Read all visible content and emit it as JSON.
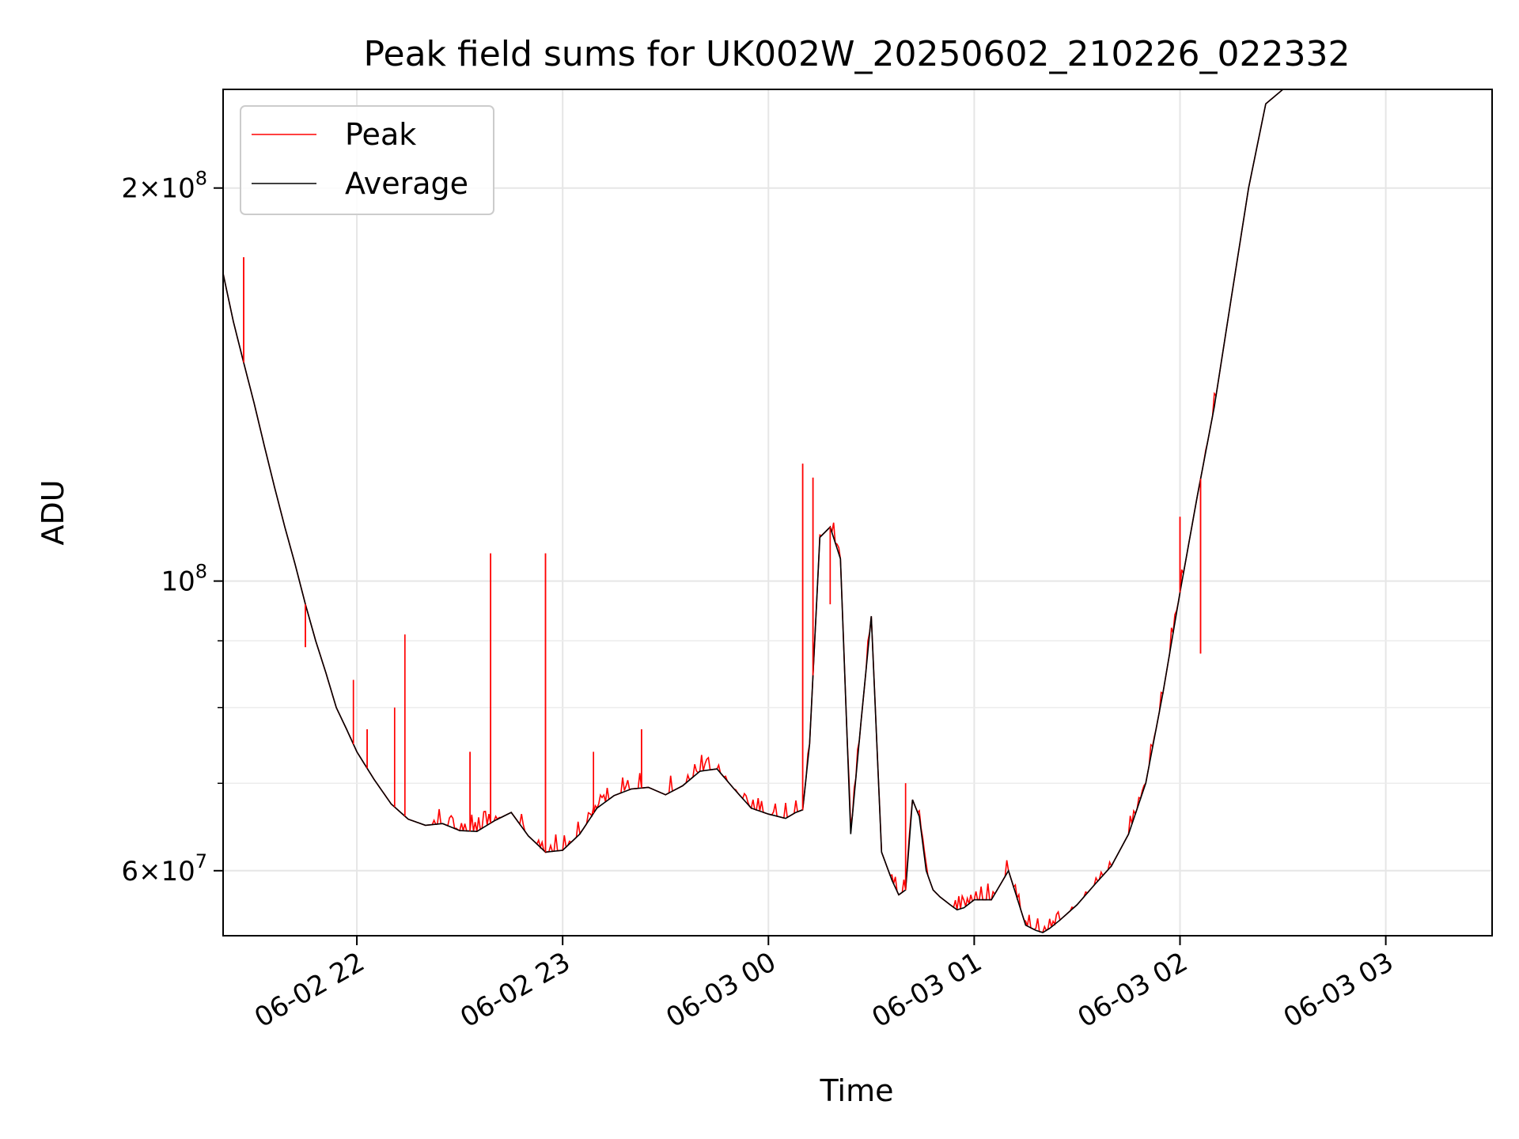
{
  "chart_data": {
    "type": "line",
    "title": "Peak field sums for UK002W_20250602_210226_022332",
    "xlabel": "Time",
    "ylabel": "ADU",
    "yscale": "log",
    "ylim": [
      53500000,
      238000000
    ],
    "xlim": [
      "2025-06-02 21:21",
      "2025-06-03 03:31"
    ],
    "grid": true,
    "legend_position": "upper-left",
    "x_ticks": [
      {
        "value": "2025-06-02 22:00",
        "label": "06-02 22"
      },
      {
        "value": "2025-06-02 23:00",
        "label": "06-02 23"
      },
      {
        "value": "2025-06-03 00:00",
        "label": "06-03 00"
      },
      {
        "value": "2025-06-03 01:00",
        "label": "06-03 01"
      },
      {
        "value": "2025-06-03 02:00",
        "label": "06-03 02"
      },
      {
        "value": "2025-06-03 03:00",
        "label": "06-03 03"
      }
    ],
    "y_major_ticks": [
      {
        "value": 60000000,
        "mantissa": "6",
        "exponent": "7"
      },
      {
        "value": 100000000,
        "mantissa": "",
        "exponent": "8"
      },
      {
        "value": 200000000,
        "mantissa": "2",
        "exponent": "8"
      }
    ],
    "y_minor_ticks": [
      70000000,
      80000000,
      90000000
    ],
    "series": [
      {
        "name": "Average",
        "color": "#000000",
        "x": [
          "2025-06-02 21:21",
          "2025-06-02 21:24",
          "2025-06-02 21:27",
          "2025-06-02 21:30",
          "2025-06-02 21:33",
          "2025-06-02 21:36",
          "2025-06-02 21:39",
          "2025-06-02 21:42",
          "2025-06-02 21:45",
          "2025-06-02 21:48",
          "2025-06-02 21:51",
          "2025-06-02 21:54",
          "2025-06-02 21:57",
          "2025-06-02 22:00",
          "2025-06-02 22:05",
          "2025-06-02 22:10",
          "2025-06-02 22:15",
          "2025-06-02 22:20",
          "2025-06-02 22:25",
          "2025-06-02 22:30",
          "2025-06-02 22:35",
          "2025-06-02 22:40",
          "2025-06-02 22:45",
          "2025-06-02 22:50",
          "2025-06-02 22:55",
          "2025-06-02 23:00",
          "2025-06-02 23:05",
          "2025-06-02 23:10",
          "2025-06-02 23:15",
          "2025-06-02 23:20",
          "2025-06-02 23:25",
          "2025-06-02 23:30",
          "2025-06-02 23:35",
          "2025-06-02 23:40",
          "2025-06-02 23:45",
          "2025-06-02 23:50",
          "2025-06-02 23:55",
          "2025-06-03 00:00",
          "2025-06-03 00:05",
          "2025-06-03 00:08",
          "2025-06-03 00:10",
          "2025-06-03 00:12",
          "2025-06-03 00:15",
          "2025-06-03 00:18",
          "2025-06-03 00:21",
          "2025-06-03 00:24",
          "2025-06-03 00:27",
          "2025-06-03 00:30",
          "2025-06-03 00:33",
          "2025-06-03 00:36",
          "2025-06-03 00:38",
          "2025-06-03 00:40",
          "2025-06-03 00:42",
          "2025-06-03 00:44",
          "2025-06-03 00:46",
          "2025-06-03 00:48",
          "2025-06-03 00:50",
          "2025-06-03 00:53",
          "2025-06-03 00:55",
          "2025-06-03 00:57",
          "2025-06-03 01:00",
          "2025-06-03 01:05",
          "2025-06-03 01:10",
          "2025-06-03 01:15",
          "2025-06-03 01:18",
          "2025-06-03 01:20",
          "2025-06-03 01:22",
          "2025-06-03 01:25",
          "2025-06-03 01:30",
          "2025-06-03 01:35",
          "2025-06-03 01:40",
          "2025-06-03 01:45",
          "2025-06-03 01:50",
          "2025-06-03 01:55",
          "2025-06-03 02:00",
          "2025-06-03 02:05",
          "2025-06-03 02:10",
          "2025-06-03 02:15",
          "2025-06-03 02:20",
          "2025-06-03 02:25",
          "2025-06-03 02:30",
          "2025-06-03 02:35",
          "2025-06-03 02:40",
          "2025-06-03 02:45",
          "2025-06-03 02:50",
          "2025-06-03 02:53",
          "2025-06-03 02:55",
          "2025-06-03 03:00"
        ],
        "values": [
          172000000,
          158000000,
          147000000,
          137000000,
          127000000,
          118000000,
          110000000,
          103000000,
          96000000,
          90000000,
          85000000,
          80000000,
          77000000,
          74000000,
          70500000,
          67500000,
          65700000,
          65000000,
          65200000,
          64400000,
          64300000,
          65500000,
          66500000,
          63800000,
          62000000,
          62200000,
          64000000,
          67000000,
          68500000,
          69300000,
          69500000,
          68600000,
          69700000,
          71500000,
          71800000,
          69300000,
          67000000,
          66300000,
          65800000,
          66500000,
          66800000,
          75000000,
          108000000,
          110000000,
          104000000,
          64000000,
          78000000,
          94000000,
          62000000,
          59000000,
          57500000,
          58000000,
          68000000,
          66000000,
          60000000,
          58000000,
          57300000,
          56500000,
          56000000,
          56200000,
          57000000,
          57000000,
          60000000,
          54500000,
          54000000,
          53800000,
          54200000,
          55000000,
          56500000,
          58500000,
          60500000,
          64000000,
          70000000,
          82000000,
          98000000,
          116000000,
          136000000,
          165000000,
          200000000,
          232000000,
          238000000,
          238000000,
          238000000,
          238000000,
          238000000,
          238000000,
          238000000,
          238000000
        ]
      },
      {
        "name": "Peak",
        "color": "#ff0000",
        "x": [
          "2025-06-02 21:27",
          "2025-06-02 21:45",
          "2025-06-02 21:59",
          "2025-06-02 22:03",
          "2025-06-02 22:11",
          "2025-06-02 22:14",
          "2025-06-02 22:33",
          "2025-06-02 22:39",
          "2025-06-02 22:55",
          "2025-06-02 23:09",
          "2025-06-02 23:23",
          "2025-06-03 00:10",
          "2025-06-03 00:13",
          "2025-06-03 00:18",
          "2025-06-03 00:40",
          "2025-06-03 02:00",
          "2025-06-03 02:06"
        ],
        "values": [
          177000000,
          89000000,
          84000000,
          77000000,
          80000000,
          91000000,
          74000000,
          105000000,
          105000000,
          74000000,
          77000000,
          123000000,
          120000000,
          96000000,
          70000000,
          112000000,
          88000000
        ]
      }
    ]
  }
}
